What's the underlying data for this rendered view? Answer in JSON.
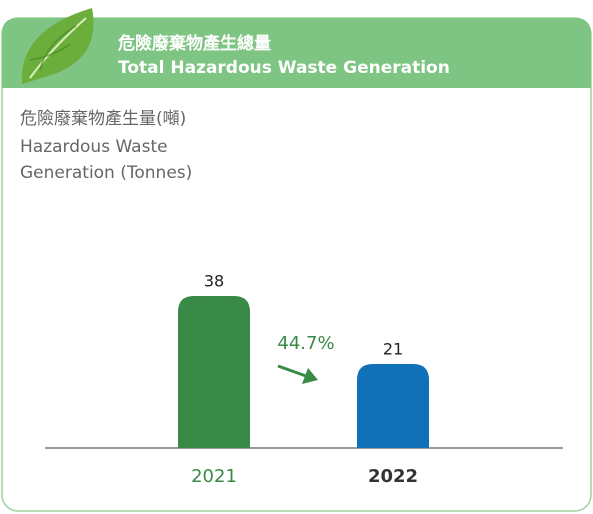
{
  "chart_data": {
    "type": "bar",
    "title": "危險廢棄物產生總量",
    "subtitle": "Total Hazardous Waste Generation",
    "y_label": "危險廢棄物產生量(噸)",
    "y_label_en": "Hazardous Waste Generation (Tonnes)",
    "categories": [
      "2021",
      "2022"
    ],
    "values": [
      38,
      21
    ],
    "colors": [
      "#3a8a47",
      "#1070b8"
    ],
    "annotation": "44.7%"
  }
}
